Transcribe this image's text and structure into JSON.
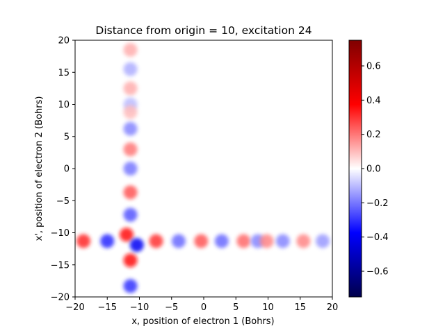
{
  "chart_data": {
    "type": "heatmap",
    "title": "Distance from origin = 10, excitation 24",
    "xlabel": "x, position of electron 1 (Bohrs)",
    "ylabel": "x', position of electron 2 (Bohrs)",
    "xlim": [
      -20,
      20
    ],
    "ylim": [
      -20,
      20
    ],
    "x_ticks": [
      -20,
      -15,
      -10,
      -5,
      0,
      5,
      10,
      15,
      20
    ],
    "y_ticks": [
      -20,
      -15,
      -10,
      -5,
      0,
      5,
      10,
      15,
      20
    ],
    "x_tick_labels": [
      "−20",
      "−15",
      "−10",
      "−5",
      "0",
      "5",
      "10",
      "15",
      "20"
    ],
    "y_tick_labels": [
      "−20",
      "−15",
      "−10",
      "−5",
      "0",
      "5",
      "10",
      "15",
      "20"
    ],
    "colormap": "seismic",
    "colorbar": {
      "range": [
        -0.75,
        0.75
      ],
      "ticks": [
        -0.6,
        -0.4,
        -0.2,
        0.0,
        0.2,
        0.4,
        0.6
      ],
      "tick_labels": [
        "−0.6",
        "−0.4",
        "−0.2",
        "0.0",
        "0.2",
        "0.4",
        "0.6"
      ]
    },
    "lobes": [
      {
        "x": -11.4,
        "y": 18.5,
        "value": 0.12
      },
      {
        "x": -11.4,
        "y": 15.5,
        "value": -0.12
      },
      {
        "x": -11.4,
        "y": 12.5,
        "value": 0.12
      },
      {
        "x": -11.4,
        "y": 10.0,
        "value": -0.1
      },
      {
        "x": -11.4,
        "y": 8.8,
        "value": 0.1
      },
      {
        "x": -11.4,
        "y": 6.2,
        "value": -0.18
      },
      {
        "x": -11.4,
        "y": 3.0,
        "value": 0.2
      },
      {
        "x": -11.4,
        "y": 0.0,
        "value": -0.2
      },
      {
        "x": -11.4,
        "y": -3.7,
        "value": 0.25
      },
      {
        "x": -11.4,
        "y": -7.2,
        "value": -0.25
      },
      {
        "x": -11.4,
        "y": -14.3,
        "value": 0.35
      },
      {
        "x": -11.4,
        "y": -18.3,
        "value": -0.3
      },
      {
        "x": -18.7,
        "y": -11.3,
        "value": 0.32
      },
      {
        "x": -15.0,
        "y": -11.3,
        "value": -0.32
      },
      {
        "x": -7.4,
        "y": -11.3,
        "value": 0.3
      },
      {
        "x": -3.9,
        "y": -11.3,
        "value": -0.22
      },
      {
        "x": -0.4,
        "y": -11.3,
        "value": 0.25
      },
      {
        "x": 2.8,
        "y": -11.3,
        "value": -0.22
      },
      {
        "x": 6.2,
        "y": -11.3,
        "value": 0.22
      },
      {
        "x": 8.4,
        "y": -11.3,
        "value": -0.18
      },
      {
        "x": 9.8,
        "y": -11.3,
        "value": 0.18
      },
      {
        "x": 12.3,
        "y": -11.3,
        "value": -0.18
      },
      {
        "x": 15.5,
        "y": -11.3,
        "value": 0.18
      },
      {
        "x": 18.5,
        "y": -11.3,
        "value": -0.15
      },
      {
        "x": -12.0,
        "y": -10.3,
        "value": 0.35
      },
      {
        "x": -10.4,
        "y": -11.9,
        "value": -0.4
      }
    ]
  }
}
